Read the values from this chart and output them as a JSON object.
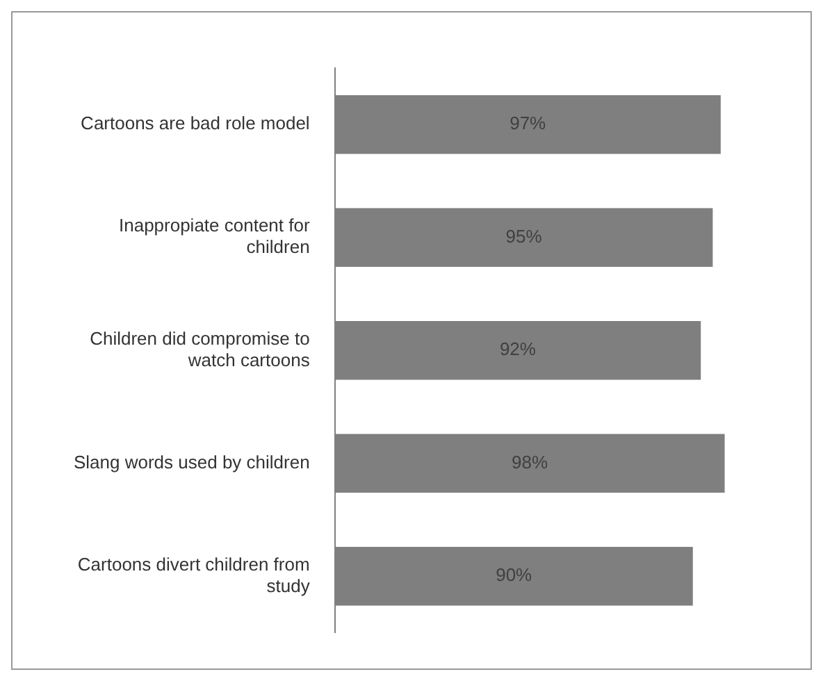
{
  "chart_data": {
    "type": "bar",
    "orientation": "horizontal",
    "categories": [
      "Cartoons are bad role model",
      "Inappropiate content for children",
      "Children did compromise to watch cartoons",
      "Slang words used by children",
      "Cartoons divert children from study"
    ],
    "values": [
      97,
      95,
      92,
      98,
      90
    ],
    "value_labels": [
      "97%",
      "95%",
      "92%",
      "98%",
      "90%"
    ],
    "color": "#7f7f7f",
    "tick_labels": "y",
    "legend": false
  }
}
